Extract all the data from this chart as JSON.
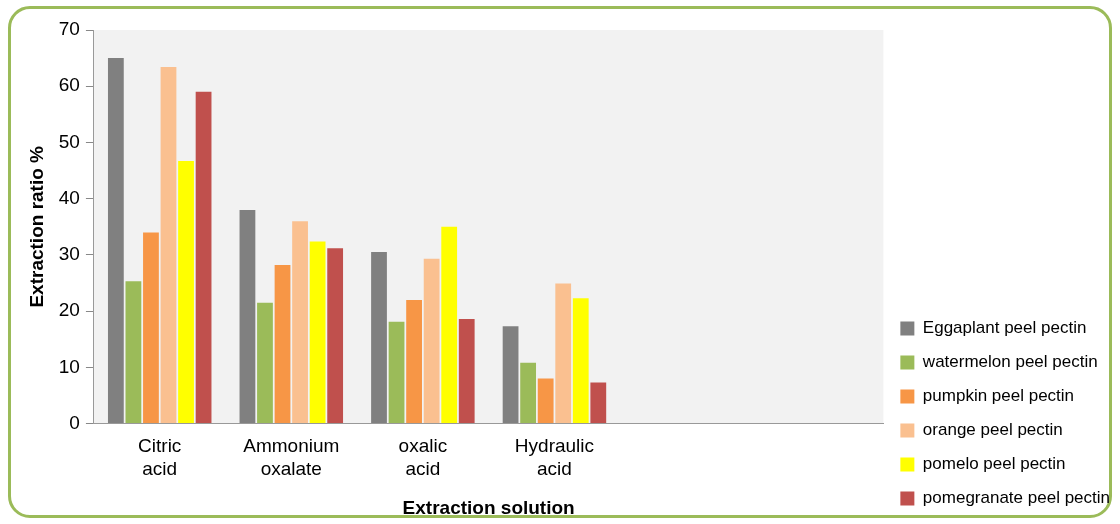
{
  "chart_data": {
    "type": "bar",
    "xlabel": "Extraction solution",
    "ylabel": "Extraction ratio %",
    "categories": [
      "Citric acid",
      "Ammonium oxalate",
      "oxalic acid",
      "Hydraulic acid",
      null,
      null
    ],
    "series": [
      {
        "name": "Eggaplant peel pectin",
        "color": "#808080",
        "values": [
          65,
          38,
          30.5,
          17.3,
          null,
          null
        ]
      },
      {
        "name": "watermelon peel pectin",
        "color": "#9bbb59",
        "values": [
          25.3,
          21.5,
          18.1,
          10.8,
          null,
          null
        ]
      },
      {
        "name": "pumpkin peel pectin",
        "color": "#f79646",
        "values": [
          34,
          28.2,
          22,
          8,
          null,
          null
        ]
      },
      {
        "name": "orange peel pectin",
        "color": "#fac090",
        "values": [
          63.4,
          36,
          29.3,
          24.9,
          null,
          null
        ]
      },
      {
        "name": "pomelo peel pectin",
        "color": "#ffff00",
        "values": [
          46.7,
          32.4,
          35,
          22.3,
          null,
          null
        ]
      },
      {
        "name": "pomegranate peel pectin",
        "color": "#c0504d",
        "values": [
          59,
          31.2,
          18.6,
          7.3,
          null,
          null
        ]
      }
    ],
    "ylim": [
      0,
      70
    ],
    "yticks": [
      0,
      10,
      20,
      30,
      40,
      50,
      60,
      70
    ],
    "grid": false,
    "legend": "bottom right"
  }
}
